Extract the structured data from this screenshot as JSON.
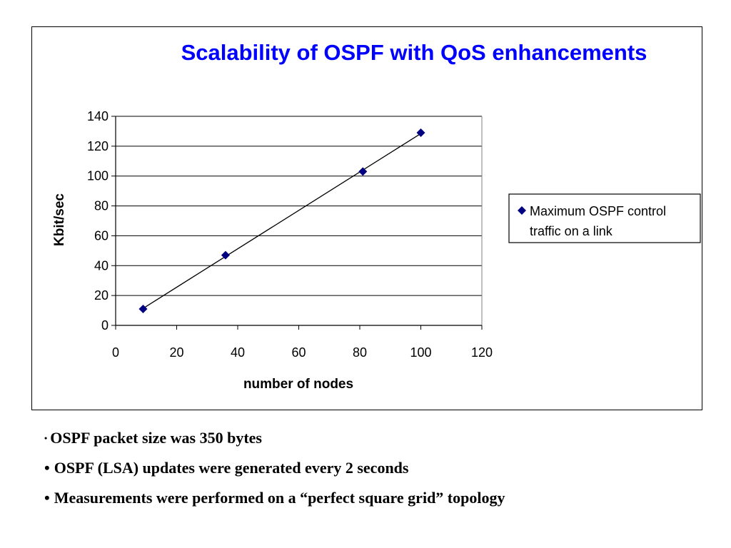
{
  "colors": {
    "title": "#0000ff",
    "marker": "#000080",
    "line": "#000000",
    "grid": "#000000",
    "frame": "#000000"
  },
  "chart_data": {
    "type": "scatter",
    "title": "Scalability of OSPF with QoS enhancements",
    "xlabel": "number of nodes",
    "ylabel": "Kbit/sec",
    "xlim": [
      0,
      120
    ],
    "ylim": [
      0,
      140
    ],
    "xticks": [
      "0",
      "20",
      "40",
      "60",
      "80",
      "100",
      "120"
    ],
    "yticks": [
      "0",
      "20",
      "40",
      "60",
      "80",
      "100",
      "120",
      "140"
    ],
    "grid": "horizontal",
    "legend_position": "right",
    "marker": "diamond",
    "trendline": "linear",
    "series": [
      {
        "name": "Maximum OSPF control traffic on a link",
        "x": [
          9,
          36,
          81,
          100
        ],
        "y": [
          11,
          47,
          103,
          129
        ]
      }
    ],
    "legend_lines": [
      "Maximum OSPF control",
      "traffic on a link"
    ]
  },
  "notes": [
    "OSPF packet size was 350 bytes",
    "OSPF (LSA) updates were generated every 2 seconds",
    "Measurements were performed on a “perfect square grid” topology"
  ],
  "bullet_symbol": "•"
}
